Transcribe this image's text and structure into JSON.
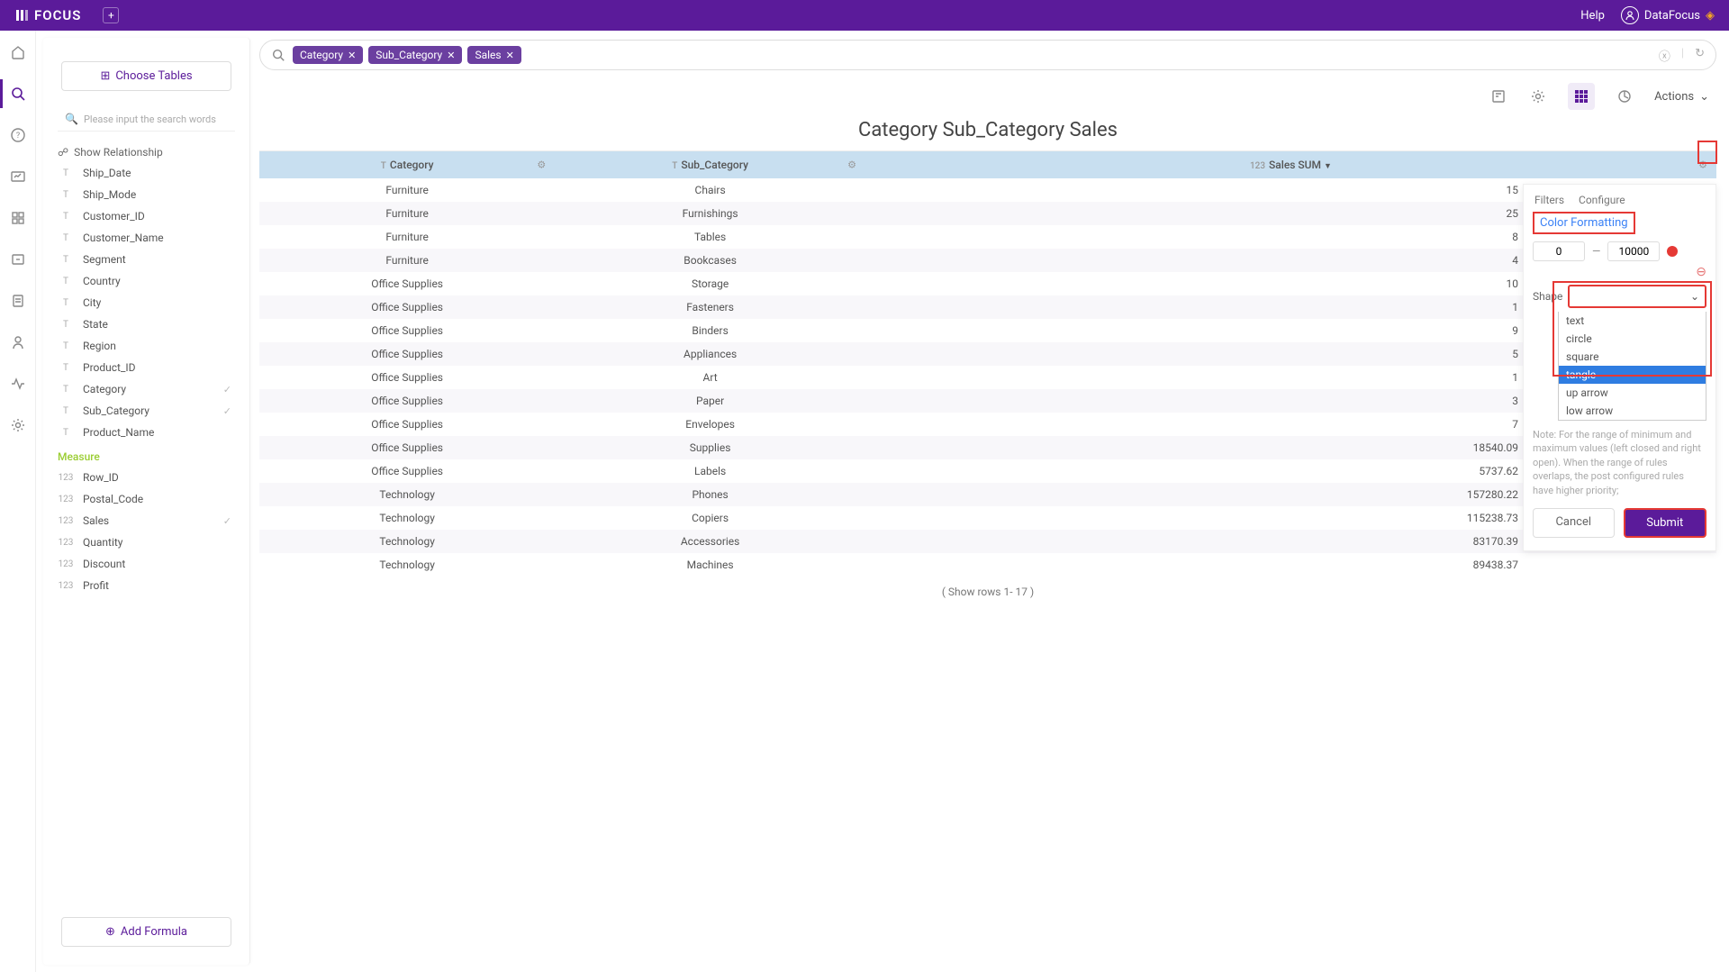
{
  "brand": "FOCUS",
  "topbar": {
    "help": "Help",
    "user": "DataFocus"
  },
  "sidebar": {
    "choose_tables": "Choose Tables",
    "search_placeholder": "Please input the search words",
    "show_relationship": "Show Relationship",
    "attributes": [
      {
        "type": "T",
        "name": "Ship_Date"
      },
      {
        "type": "T",
        "name": "Ship_Mode"
      },
      {
        "type": "T",
        "name": "Customer_ID"
      },
      {
        "type": "T",
        "name": "Customer_Name"
      },
      {
        "type": "T",
        "name": "Segment"
      },
      {
        "type": "T",
        "name": "Country"
      },
      {
        "type": "T",
        "name": "City"
      },
      {
        "type": "T",
        "name": "State"
      },
      {
        "type": "T",
        "name": "Region"
      },
      {
        "type": "T",
        "name": "Product_ID"
      },
      {
        "type": "T",
        "name": "Category",
        "checked": true
      },
      {
        "type": "T",
        "name": "Sub_Category",
        "checked": true
      },
      {
        "type": "T",
        "name": "Product_Name"
      }
    ],
    "measure_label": "Measure",
    "measures": [
      {
        "type": "123",
        "name": "Row_ID"
      },
      {
        "type": "123",
        "name": "Postal_Code"
      },
      {
        "type": "123",
        "name": "Sales",
        "checked": true
      },
      {
        "type": "123",
        "name": "Quantity"
      },
      {
        "type": "123",
        "name": "Discount"
      },
      {
        "type": "123",
        "name": "Profit"
      }
    ],
    "add_formula": "Add Formula"
  },
  "chips": [
    "Category",
    "Sub_Category",
    "Sales"
  ],
  "title": "Category Sub_Category Sales",
  "actions_label": "Actions",
  "columns": [
    {
      "icon": "T",
      "label": "Category"
    },
    {
      "icon": "T",
      "label": "Sub_Category"
    },
    {
      "icon": "123",
      "label": "Sales SUM",
      "sort": "▼"
    }
  ],
  "rows": [
    [
      "Furniture",
      "Chairs",
      "15"
    ],
    [
      "Furniture",
      "Furnishings",
      "25"
    ],
    [
      "Furniture",
      "Tables",
      "8"
    ],
    [
      "Furniture",
      "Bookcases",
      "4"
    ],
    [
      "Office Supplies",
      "Storage",
      "10"
    ],
    [
      "Office Supplies",
      "Fasteners",
      "1"
    ],
    [
      "Office Supplies",
      "Binders",
      "9"
    ],
    [
      "Office Supplies",
      "Appliances",
      "5"
    ],
    [
      "Office Supplies",
      "Art",
      "1"
    ],
    [
      "Office Supplies",
      "Paper",
      "3"
    ],
    [
      "Office Supplies",
      "Envelopes",
      "7"
    ],
    [
      "Office Supplies",
      "Supplies",
      "18540.09"
    ],
    [
      "Office Supplies",
      "Labels",
      "5737.62"
    ],
    [
      "Technology",
      "Phones",
      "157280.22"
    ],
    [
      "Technology",
      "Copiers",
      "115238.73"
    ],
    [
      "Technology",
      "Accessories",
      "83170.39"
    ],
    [
      "Technology",
      "Machines",
      "89438.37"
    ]
  ],
  "footer": "( Show rows 1- 17 )",
  "config": {
    "tab_filters": "Filters",
    "tab_configure": "Configure",
    "color_formatting": "Color Formatting",
    "range_min": "0",
    "range_max": "10000",
    "shape_label": "Shape",
    "shape_options": [
      "text",
      "circle",
      "square",
      "tangle",
      "up arrow",
      "low arrow"
    ],
    "shape_selected": "tangle",
    "note": "Note: For the range of minimum and maximum values (left closed and right open). When the range of rules overlaps, the post configured rules have higher priority;",
    "cancel": "Cancel",
    "submit": "Submit"
  },
  "colors": {
    "brand": "#5b1b9a",
    "highlight": "#e53935",
    "header_row": "#c8dff0",
    "dropdown_sel": "#2f7de1"
  }
}
